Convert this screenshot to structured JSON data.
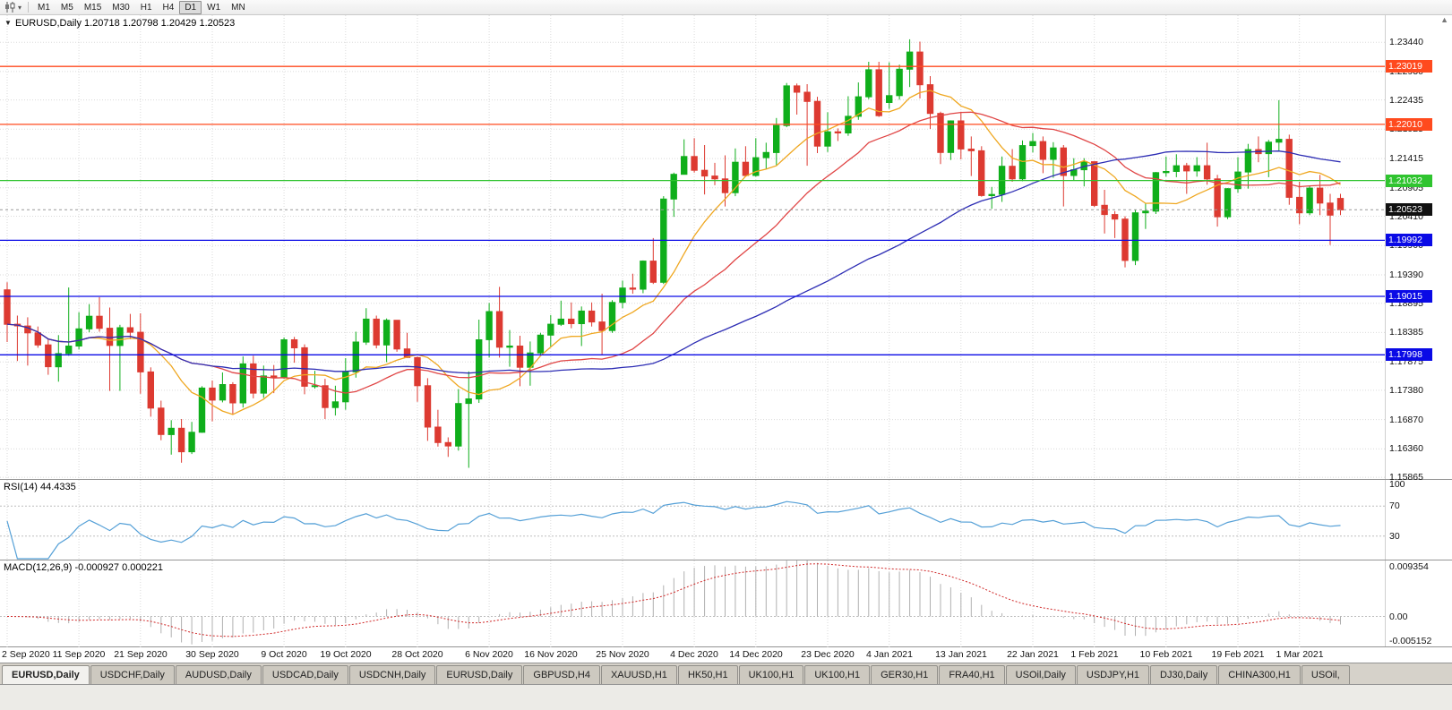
{
  "colors": {
    "grid": "#dadada",
    "candle_up": "#0fae1b",
    "candle_down": "#dd3a31",
    "current_tag": "#111111",
    "macd_hist": "#b0b0b0",
    "macd_signal": "#d02828"
  },
  "toolbar": {
    "icons": [
      "candlestick-chart-icon",
      "chevron-down-icon"
    ],
    "timeframes": [
      "M1",
      "M5",
      "M15",
      "M30",
      "H1",
      "H4",
      "D1",
      "W1",
      "MN"
    ],
    "active_timeframe": "D1"
  },
  "chart": {
    "symbol": "EURUSD",
    "period": "Daily",
    "title_text": "EURUSD,Daily 1.20718 1.20798 1.20429 1.20523",
    "ohlc_display": {
      "open": "1.20718",
      "high": "1.20798",
      "low": "1.20429",
      "close": "1.20523"
    }
  },
  "price_axis": {
    "ticks": [
      "1.23440",
      "1.22930",
      "1.22435",
      "1.21925",
      "1.21415",
      "1.20905",
      "1.20410",
      "1.19900",
      "1.19390",
      "1.18895",
      "1.18385",
      "1.17875",
      "1.17380",
      "1.16870",
      "1.16360",
      "1.15865"
    ]
  },
  "hlines": [
    {
      "price": 1.23019,
      "label": "1.23019",
      "color": "#ff4a1e"
    },
    {
      "price": 1.2201,
      "label": "1.22010",
      "color": "#ff4a1e"
    },
    {
      "price": 1.21032,
      "label": "1.21032",
      "color": "#2fc42f"
    },
    {
      "price": 1.19992,
      "label": "1.19992",
      "color": "#0a0ae6"
    },
    {
      "price": 1.19015,
      "label": "1.19015",
      "color": "#0a0ae6"
    },
    {
      "price": 1.17998,
      "label": "1.17998",
      "color": "#0a0ae6"
    }
  ],
  "current_price": {
    "price": 1.20523,
    "label": "1.20523"
  },
  "rsi": {
    "label": "RSI(14) 44.4335",
    "period": 14,
    "value": 44.4335,
    "color": "#55a0d7",
    "scale": [
      "100",
      "70",
      "30"
    ],
    "level_lines": [
      70,
      30
    ]
  },
  "macd": {
    "label": "MACD(12,26,9) -0.000927 0.000221",
    "params": [
      12,
      26,
      9
    ],
    "main_value": -0.000927,
    "signal_value": 0.000221,
    "scale": [
      "0.009354",
      "0.00",
      "-0.005152"
    ],
    "range": [
      -0.00515,
      0.00935
    ]
  },
  "tabs": [
    {
      "label": "EURUSD,Daily",
      "active": true
    },
    {
      "label": "USDCHF,Daily",
      "active": false
    },
    {
      "label": "AUDUSD,Daily",
      "active": false
    },
    {
      "label": "USDCAD,Daily",
      "active": false
    },
    {
      "label": "USDCNH,Daily",
      "active": false
    },
    {
      "label": "EURUSD,Daily",
      "active": false
    },
    {
      "label": "GBPUSD,H4",
      "active": false
    },
    {
      "label": "XAUUSD,H1",
      "active": false
    },
    {
      "label": "HK50,H1",
      "active": false
    },
    {
      "label": "UK100,H1",
      "active": false
    },
    {
      "label": "UK100,H1",
      "active": false
    },
    {
      "label": "GER30,H1",
      "active": false
    },
    {
      "label": "FRA40,H1",
      "active": false
    },
    {
      "label": "USOil,Daily",
      "active": false
    },
    {
      "label": "USDJPY,H1",
      "active": false
    },
    {
      "label": "DJ30,Daily",
      "active": false
    },
    {
      "label": "CHINA300,H1",
      "active": false
    },
    {
      "label": "USOil,",
      "active": false
    }
  ],
  "chart_data": {
    "type": "candlestick",
    "symbol": "EURUSD",
    "timeframe": "Daily",
    "y_range": [
      1.1582,
      1.2391
    ],
    "x_offset": 8,
    "bar_spacing": 11.45,
    "moving_averages": [
      {
        "type": "sma",
        "period": 9,
        "color": "#efa720"
      },
      {
        "type": "sma",
        "period": 21,
        "color": "#e04545"
      },
      {
        "type": "sma",
        "period": 50,
        "color": "#2d2db4"
      }
    ],
    "date_ticks": [
      {
        "index": 0,
        "label": "2 Sep 2020"
      },
      {
        "index": 7,
        "label": "11 Sep 2020"
      },
      {
        "index": 13,
        "label": "21 Sep 2020"
      },
      {
        "index": 20,
        "label": "30 Sep 2020"
      },
      {
        "index": 27,
        "label": "9 Oct 2020"
      },
      {
        "index": 33,
        "label": "19 Oct 2020"
      },
      {
        "index": 40,
        "label": "28 Oct 2020"
      },
      {
        "index": 47,
        "label": "6 Nov 2020"
      },
      {
        "index": 53,
        "label": "16 Nov 2020"
      },
      {
        "index": 60,
        "label": "25 Nov 2020"
      },
      {
        "index": 67,
        "label": "4 Dec 2020"
      },
      {
        "index": 73,
        "label": "14 Dec 2020"
      },
      {
        "index": 80,
        "label": "23 Dec 2020"
      },
      {
        "index": 86,
        "label": "4 Jan 2021"
      },
      {
        "index": 93,
        "label": "13 Jan 2021"
      },
      {
        "index": 100,
        "label": "22 Jan 2021"
      },
      {
        "index": 106,
        "label": "1 Feb 2021"
      },
      {
        "index": 113,
        "label": "10 Feb 2021"
      },
      {
        "index": 120,
        "label": "19 Feb 2021"
      },
      {
        "index": 126,
        "label": "1 Mar 2021"
      }
    ],
    "ohlc": [
      [
        1.1913,
        1.1926,
        1.1822,
        1.1853
      ],
      [
        1.1853,
        1.1868,
        1.1789,
        1.185
      ],
      [
        1.185,
        1.1865,
        1.1781,
        1.1838
      ],
      [
        1.1838,
        1.1849,
        1.1812,
        1.1817
      ],
      [
        1.1817,
        1.1827,
        1.1765,
        1.1779
      ],
      [
        1.1779,
        1.1834,
        1.1753,
        1.1802
      ],
      [
        1.1802,
        1.1917,
        1.1798,
        1.1815
      ],
      [
        1.1815,
        1.1874,
        1.1809,
        1.1845
      ],
      [
        1.1845,
        1.1888,
        1.1839,
        1.1867
      ],
      [
        1.1867,
        1.19,
        1.184,
        1.1846
      ],
      [
        1.1846,
        1.1882,
        1.1737,
        1.1816
      ],
      [
        1.1816,
        1.1852,
        1.1737,
        1.1847
      ],
      [
        1.1847,
        1.1871,
        1.1827,
        1.1839
      ],
      [
        1.1839,
        1.1872,
        1.1732,
        1.177
      ],
      [
        1.177,
        1.1778,
        1.1692,
        1.1707
      ],
      [
        1.1707,
        1.172,
        1.1651,
        1.1661
      ],
      [
        1.1661,
        1.1686,
        1.1626,
        1.1672
      ],
      [
        1.1672,
        1.1688,
        1.1612,
        1.1631
      ],
      [
        1.1631,
        1.1683,
        1.1627,
        1.1665
      ],
      [
        1.1665,
        1.1745,
        1.1664,
        1.1742
      ],
      [
        1.1742,
        1.1755,
        1.1684,
        1.1721
      ],
      [
        1.1721,
        1.1769,
        1.1717,
        1.1748
      ],
      [
        1.1748,
        1.1752,
        1.1695,
        1.1716
      ],
      [
        1.1716,
        1.1797,
        1.1708,
        1.1784
      ],
      [
        1.1784,
        1.1798,
        1.1724,
        1.1733
      ],
      [
        1.1733,
        1.1781,
        1.1725,
        1.1763
      ],
      [
        1.1763,
        1.1782,
        1.1733,
        1.176
      ],
      [
        1.176,
        1.183,
        1.1758,
        1.1826
      ],
      [
        1.1826,
        1.1831,
        1.1786,
        1.1812
      ],
      [
        1.1812,
        1.1818,
        1.1731,
        1.1745
      ],
      [
        1.1745,
        1.1772,
        1.1741,
        1.1746
      ],
      [
        1.1746,
        1.1758,
        1.1688,
        1.1708
      ],
      [
        1.1708,
        1.1746,
        1.1694,
        1.1718
      ],
      [
        1.1718,
        1.1794,
        1.1704,
        1.177
      ],
      [
        1.177,
        1.184,
        1.176,
        1.1822
      ],
      [
        1.1822,
        1.1881,
        1.1817,
        1.1862
      ],
      [
        1.1862,
        1.1868,
        1.1811,
        1.1817
      ],
      [
        1.1817,
        1.1863,
        1.1787,
        1.186
      ],
      [
        1.186,
        1.186,
        1.1805,
        1.181
      ],
      [
        1.181,
        1.1838,
        1.1794,
        1.1795
      ],
      [
        1.1795,
        1.1797,
        1.1718,
        1.1746
      ],
      [
        1.1746,
        1.1759,
        1.165,
        1.1674
      ],
      [
        1.1674,
        1.1704,
        1.164,
        1.1647
      ],
      [
        1.1647,
        1.1656,
        1.1622,
        1.1641
      ],
      [
        1.1641,
        1.174,
        1.1633,
        1.1715
      ],
      [
        1.1715,
        1.1771,
        1.1603,
        1.1723
      ],
      [
        1.1723,
        1.1861,
        1.1716,
        1.1826
      ],
      [
        1.1826,
        1.189,
        1.1795,
        1.1875
      ],
      [
        1.1875,
        1.1918,
        1.1795,
        1.1813
      ],
      [
        1.1813,
        1.1843,
        1.1779,
        1.1815
      ],
      [
        1.1815,
        1.1833,
        1.1745,
        1.1778
      ],
      [
        1.1778,
        1.1823,
        1.1746,
        1.1803
      ],
      [
        1.1803,
        1.1838,
        1.1799,
        1.1834
      ],
      [
        1.1834,
        1.1869,
        1.1814,
        1.1853
      ],
      [
        1.1853,
        1.1894,
        1.185,
        1.1862
      ],
      [
        1.1862,
        1.1891,
        1.1846,
        1.1854
      ],
      [
        1.1854,
        1.1884,
        1.1815,
        1.1876
      ],
      [
        1.1876,
        1.1891,
        1.1849,
        1.1857
      ],
      [
        1.1857,
        1.1906,
        1.18,
        1.1842
      ],
      [
        1.1842,
        1.1895,
        1.1838,
        1.1891
      ],
      [
        1.1891,
        1.1929,
        1.1881,
        1.1916
      ],
      [
        1.1916,
        1.1941,
        1.1906,
        1.1914
      ],
      [
        1.1914,
        1.1964,
        1.1907,
        1.1963
      ],
      [
        1.1963,
        1.2003,
        1.1923,
        1.1926
      ],
      [
        1.1926,
        1.2076,
        1.1923,
        1.2071
      ],
      [
        1.2071,
        1.2117,
        1.204,
        1.2114
      ],
      [
        1.2114,
        1.2175,
        1.2114,
        1.2145
      ],
      [
        1.2145,
        1.2177,
        1.2117,
        1.2121
      ],
      [
        1.2121,
        1.2165,
        1.2079,
        1.2111
      ],
      [
        1.2111,
        1.2134,
        1.2095,
        1.2106
      ],
      [
        1.2106,
        1.2147,
        1.2058,
        1.2082
      ],
      [
        1.2082,
        1.2159,
        1.2076,
        1.2135
      ],
      [
        1.2135,
        1.2163,
        1.211,
        1.2112
      ],
      [
        1.2112,
        1.2177,
        1.211,
        1.2143
      ],
      [
        1.2143,
        1.2169,
        1.2123,
        1.2152
      ],
      [
        1.2152,
        1.2212,
        1.213,
        1.2199
      ],
      [
        1.2199,
        1.2273,
        1.2196,
        1.2268
      ],
      [
        1.2268,
        1.2272,
        1.2218,
        1.2257
      ],
      [
        1.2257,
        1.2271,
        1.2129,
        1.2241
      ],
      [
        1.2241,
        1.2249,
        1.2151,
        1.2163
      ],
      [
        1.2163,
        1.2222,
        1.2153,
        1.2188
      ],
      [
        1.2188,
        1.2194,
        1.2172,
        1.2186
      ],
      [
        1.2186,
        1.225,
        1.2181,
        1.2215
      ],
      [
        1.2215,
        1.2274,
        1.2209,
        1.2249
      ],
      [
        1.2249,
        1.231,
        1.2245,
        1.2296
      ],
      [
        1.2296,
        1.231,
        1.2214,
        1.2216
      ],
      [
        1.2239,
        1.2309,
        1.2228,
        1.2251
      ],
      [
        1.2251,
        1.2305,
        1.2244,
        1.2297
      ],
      [
        1.2297,
        1.2349,
        1.2266,
        1.2327
      ],
      [
        1.2327,
        1.2345,
        1.2246,
        1.227
      ],
      [
        1.227,
        1.2285,
        1.2193,
        1.222
      ],
      [
        1.222,
        1.2223,
        1.2132,
        1.2152
      ],
      [
        1.2152,
        1.2208,
        1.2139,
        1.2207
      ],
      [
        1.2207,
        1.2223,
        1.214,
        1.2158
      ],
      [
        1.2158,
        1.218,
        1.2111,
        1.2155
      ],
      [
        1.2155,
        1.2163,
        1.2075,
        1.2077
      ],
      [
        1.2077,
        1.2092,
        1.2054,
        1.2079
      ],
      [
        1.2079,
        1.2145,
        1.2066,
        1.2128
      ],
      [
        1.2128,
        1.2158,
        1.2101,
        1.2106
      ],
      [
        1.2106,
        1.2173,
        1.2102,
        1.2164
      ],
      [
        1.2164,
        1.2186,
        1.2152,
        1.2171
      ],
      [
        1.2171,
        1.218,
        1.2116,
        1.214
      ],
      [
        1.214,
        1.217,
        1.2108,
        1.216
      ],
      [
        1.216,
        1.2165,
        1.2058,
        1.2112
      ],
      [
        1.2112,
        1.2142,
        1.2104,
        1.2122
      ],
      [
        1.2122,
        1.2142,
        1.2093,
        1.2136
      ],
      [
        1.2136,
        1.2136,
        1.2057,
        1.206
      ],
      [
        1.206,
        1.2087,
        1.2011,
        1.2044
      ],
      [
        1.2044,
        1.205,
        1.2003,
        1.2036
      ],
      [
        1.2036,
        1.2041,
        1.1952,
        1.1964
      ],
      [
        1.1964,
        1.2052,
        1.1956,
        1.2047
      ],
      [
        1.2047,
        1.2064,
        1.2019,
        1.205
      ],
      [
        1.205,
        1.2118,
        1.2045,
        1.2117
      ],
      [
        1.2117,
        1.2145,
        1.211,
        1.2119
      ],
      [
        1.2119,
        1.2149,
        1.2109,
        1.2129
      ],
      [
        1.2129,
        1.2134,
        1.208,
        1.212
      ],
      [
        1.212,
        1.2144,
        1.211,
        1.2129
      ],
      [
        1.2129,
        1.2169,
        1.2096,
        1.2106
      ],
      [
        1.2106,
        1.2113,
        1.2023,
        1.204
      ],
      [
        1.204,
        1.209,
        1.2036,
        1.2089
      ],
      [
        1.2089,
        1.2144,
        1.2082,
        1.2118
      ],
      [
        1.2118,
        1.2167,
        1.2089,
        1.2157
      ],
      [
        1.2157,
        1.218,
        1.2135,
        1.215
      ],
      [
        1.215,
        1.2174,
        1.2109,
        1.217
      ],
      [
        1.217,
        1.2243,
        1.2155,
        1.2175
      ],
      [
        1.2175,
        1.2183,
        1.2061,
        1.2074
      ],
      [
        1.2074,
        1.2101,
        1.2027,
        1.2047
      ],
      [
        1.2047,
        1.2094,
        1.2043,
        1.209
      ],
      [
        1.209,
        1.2113,
        1.2043,
        1.2064
      ],
      [
        1.2064,
        1.208,
        1.1991,
        1.2043
      ],
      [
        1.2072,
        1.208,
        1.2043,
        1.2052
      ]
    ]
  }
}
